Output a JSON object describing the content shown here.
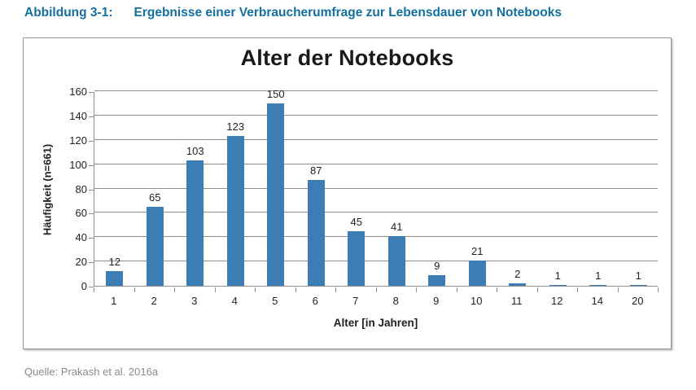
{
  "caption": {
    "label": "Abbildung 3-1:",
    "title": "Ergebnisse einer Verbraucherumfrage zur Lebensdauer von Notebooks"
  },
  "chart_data": {
    "type": "bar",
    "title": "Alter der Notebooks",
    "categories": [
      "1",
      "2",
      "3",
      "4",
      "5",
      "6",
      "7",
      "8",
      "9",
      "10",
      "11",
      "12",
      "14",
      "20"
    ],
    "values": [
      12,
      65,
      103,
      123,
      150,
      87,
      45,
      41,
      9,
      21,
      2,
      1,
      1,
      1
    ],
    "xlabel": "Alter [in Jahren]",
    "ylabel": "Häufigkeit (n=661)",
    "ylim": [
      0,
      160
    ],
    "ytick_step": 20,
    "grid": true,
    "value_labels": true,
    "legend": "none",
    "bar_color": "#3d7db6"
  },
  "source": {
    "text": "Quelle: Prakash et al. 2016a"
  },
  "colors": {
    "heading": "#136f9e",
    "source": "#8a8a8a",
    "grid": "#8e8e8e"
  }
}
